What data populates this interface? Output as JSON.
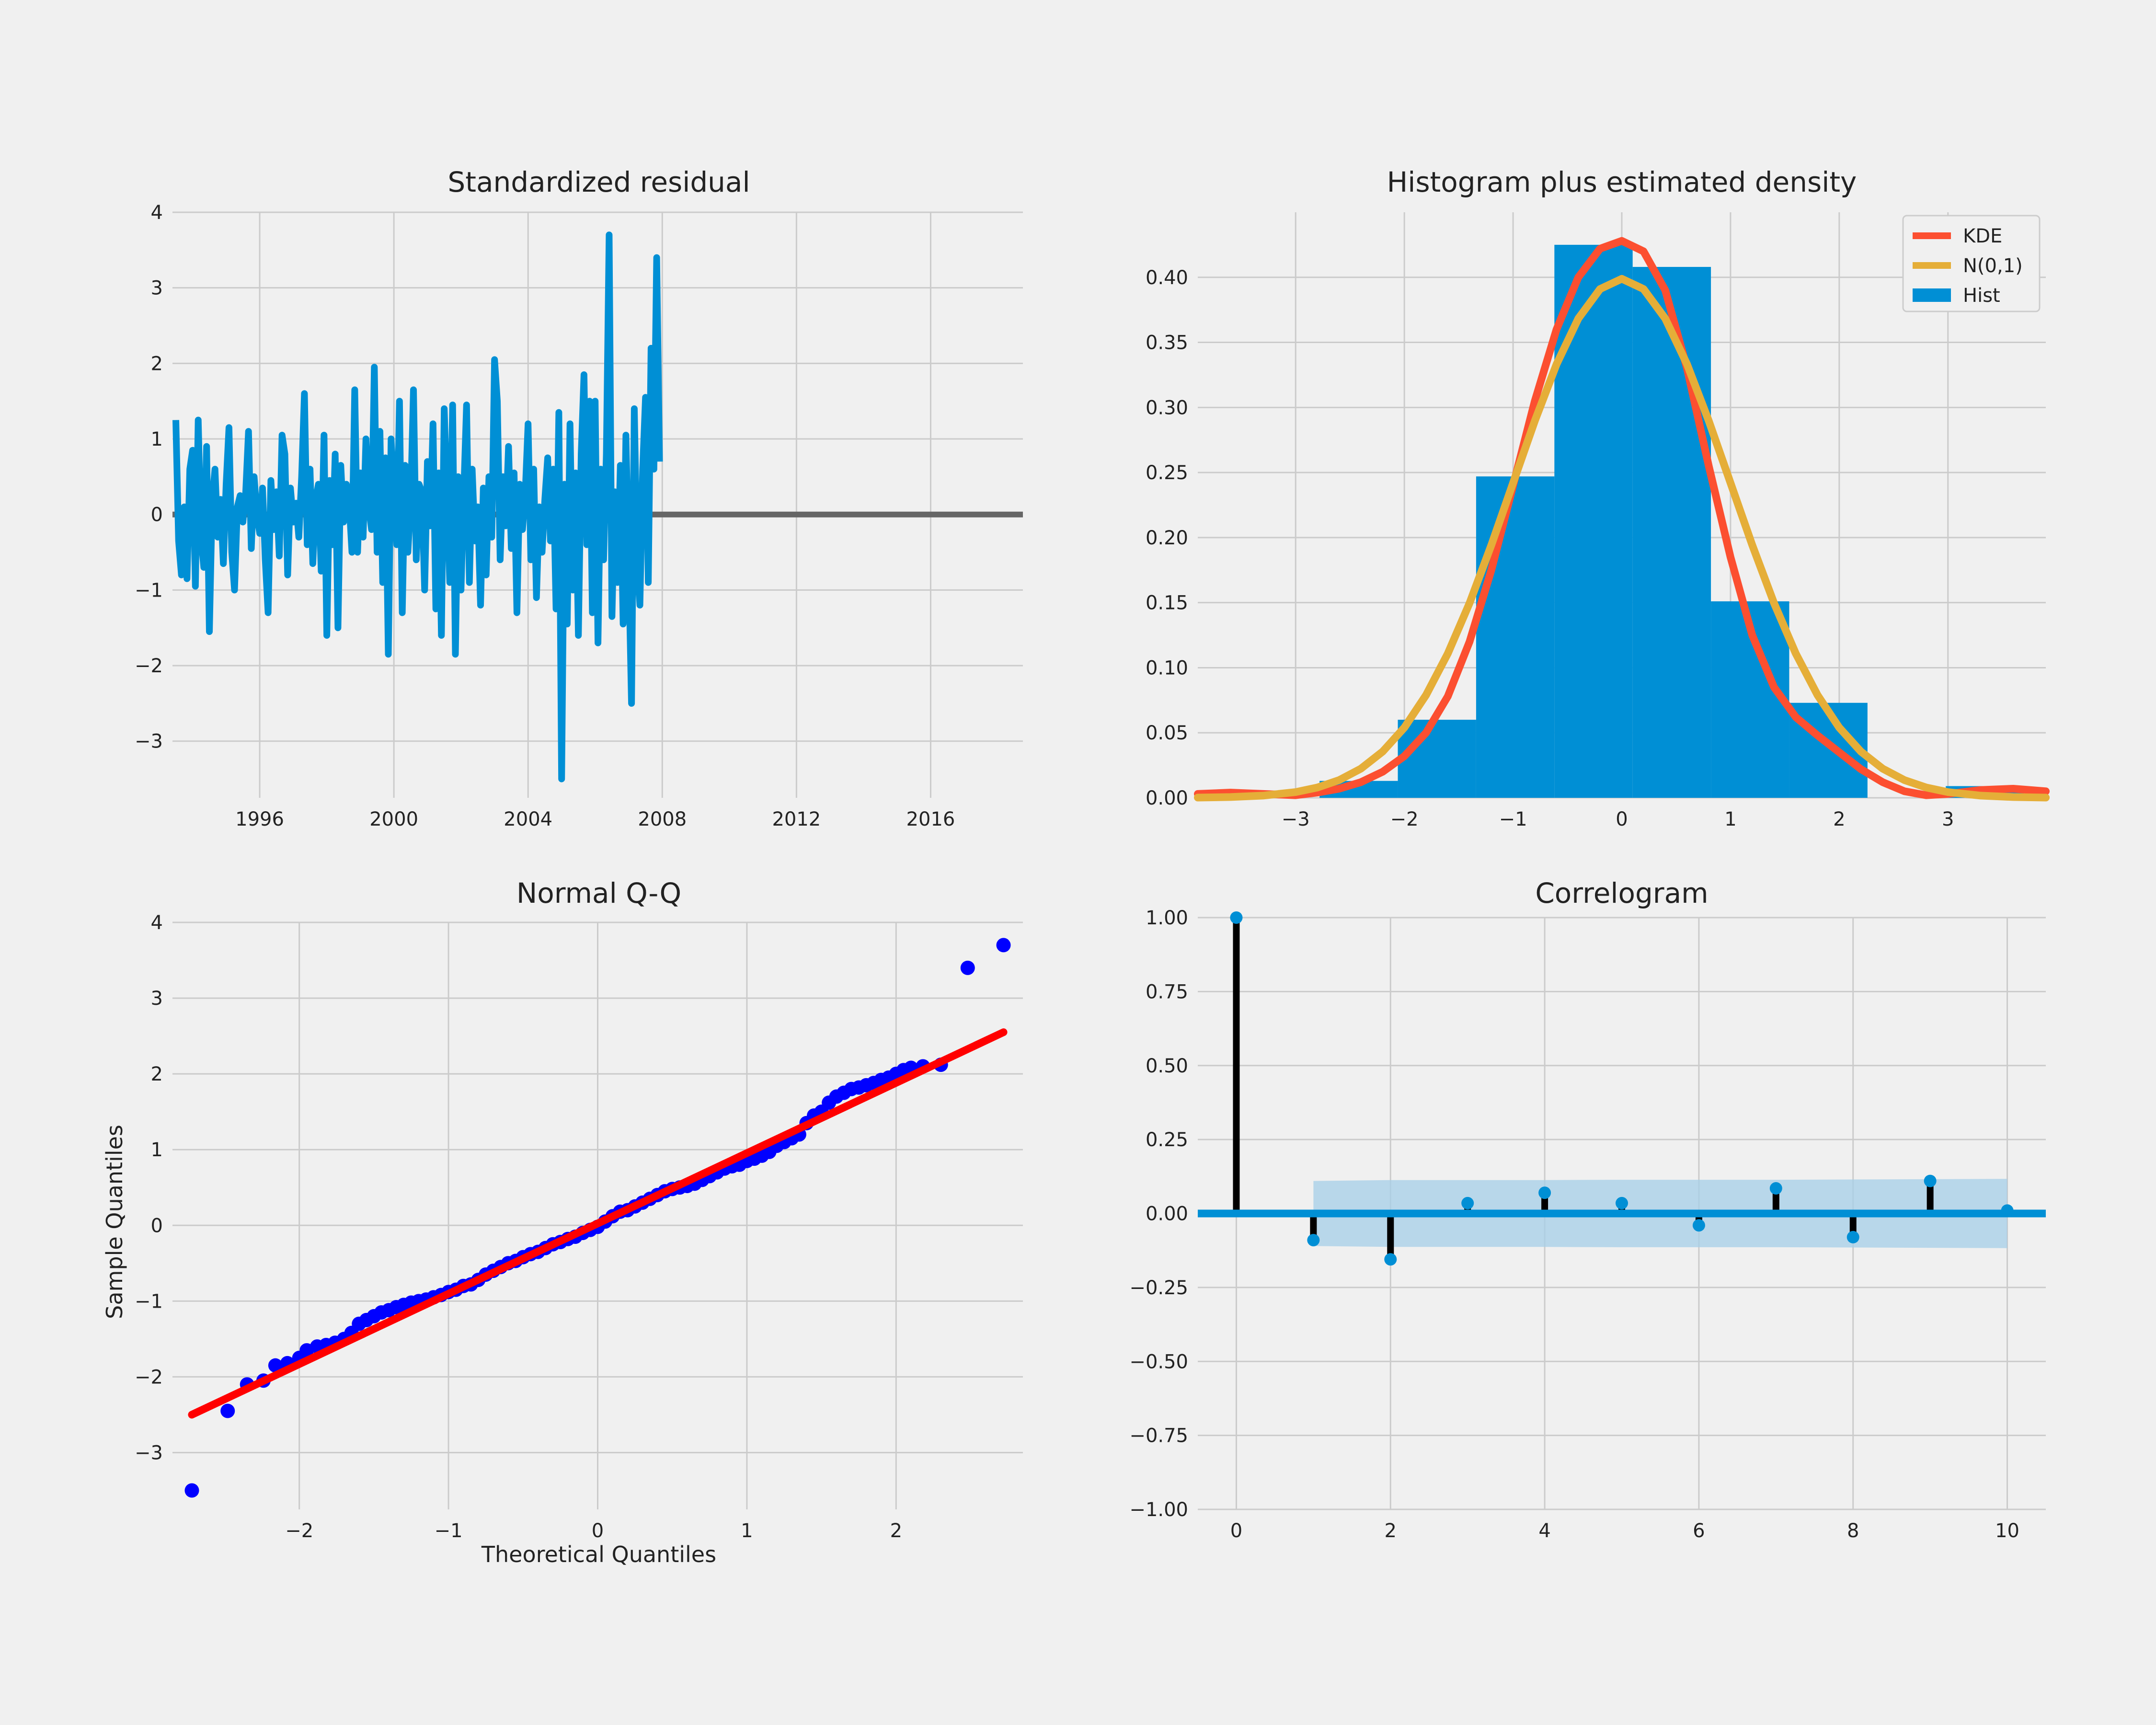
{
  "colors": {
    "background": "#f0f0f0",
    "grid": "#cbcbcb",
    "blue": "#008fd5",
    "red": "#fc4f30",
    "yellow": "#e5ae38",
    "qq_points": "#0000ff",
    "qq_line": "#ff0000",
    "stem": "#000000",
    "gray_zero": "#666666",
    "conf_band": "#a6cfe8"
  },
  "panels": {
    "residual": {
      "title": "Standardized residual"
    },
    "histogram": {
      "title": "Histogram plus estimated density"
    },
    "qq": {
      "title": "Normal Q-Q",
      "xlabel": "Theoretical Quantiles",
      "ylabel": "Sample Quantiles"
    },
    "correlogram": {
      "title": "Correlogram"
    }
  },
  "chart_data": [
    {
      "type": "line",
      "title": "Standardized residual",
      "xlabel": "",
      "ylabel": "",
      "xlim": [
        1993.4,
        2018.75
      ],
      "ylim": [
        -3.75,
        4.0
      ],
      "xticks": [
        1996,
        2000,
        2004,
        2008,
        2012,
        2016
      ],
      "xtick_labels": [
        "1996",
        "2000",
        "2004",
        "2008",
        "2012",
        "2016"
      ],
      "yticks": [
        -3,
        -2,
        -1,
        0,
        1,
        2,
        3,
        4
      ],
      "ytick_labels": [
        "−3",
        "−2",
        "−1",
        "0",
        "1",
        "2",
        "3",
        "4"
      ],
      "grid": true,
      "reference_line": 0,
      "series": [
        {
          "x_start": 1993.5,
          "x_step": 0.0833333,
          "values": [
            1.25,
            -0.35,
            -0.8,
            0.1,
            -0.85,
            0.6,
            0.85,
            -0.95,
            1.25,
            -0.3,
            -0.7,
            0.9,
            -1.55,
            0.2,
            0.6,
            -0.3,
            0.2,
            -0.65,
            0.4,
            1.15,
            -0.5,
            -1.0,
            0.1,
            0.25,
            -0.1,
            0.3,
            1.1,
            -0.45,
            0.5,
            0.0,
            -0.25,
            0.35,
            -0.6,
            -1.3,
            0.45,
            -0.2,
            0.3,
            -0.55,
            1.05,
            0.8,
            -0.8,
            0.35,
            -0.1,
            0.15,
            -0.3,
            0.5,
            1.6,
            -0.4,
            0.6,
            -0.65,
            0.2,
            0.4,
            -0.75,
            1.05,
            -1.6,
            0.45,
            -0.4,
            0.8,
            -1.5,
            0.65,
            -0.1,
            0.4,
            0.15,
            -0.5,
            1.65,
            -0.5,
            0.55,
            -0.3,
            1.0,
            0.1,
            -0.2,
            1.95,
            -0.5,
            1.1,
            -0.9,
            0.75,
            -1.85,
            1.0,
            0.3,
            -0.4,
            1.5,
            -1.3,
            0.65,
            -0.5,
            0.15,
            1.65,
            -0.6,
            0.4,
            0.3,
            -1.0,
            0.7,
            -0.15,
            1.2,
            -1.25,
            0.55,
            -1.6,
            1.4,
            0.2,
            -0.9,
            1.45,
            -1.85,
            0.5,
            -1.0,
            0.3,
            1.45,
            -0.9,
            0.6,
            -0.35,
            0.1,
            -1.2,
            0.35,
            -0.8,
            0.5,
            -0.3,
            2.05,
            1.5,
            -0.6,
            0.5,
            -0.15,
            0.9,
            -0.45,
            0.55,
            -1.3,
            0.4,
            -0.2,
            0.3,
            1.2,
            -0.6,
            0.6,
            -1.1,
            0.1,
            -0.5,
            0.2,
            0.75,
            -0.35,
            0.6,
            -1.25,
            1.35,
            -3.5,
            0.4,
            -1.45,
            1.2,
            -1.0,
            0.55,
            -1.6,
            0.8,
            1.85,
            -0.4,
            1.5,
            -1.3,
            1.5,
            -1.7,
            0.6,
            -0.6,
            0.8,
            3.7,
            -1.35,
            0.3,
            -0.9,
            0.65,
            -1.45,
            1.05,
            -0.7,
            -2.5,
            1.4,
            -0.6,
            -1.2,
            0.6,
            1.55,
            -0.9,
            2.2,
            0.6,
            3.4,
            0.7
          ]
        }
      ]
    },
    {
      "type": "bar",
      "title": "Histogram plus estimated density",
      "xlabel": "",
      "ylabel": "",
      "xlim": [
        -3.9,
        3.9
      ],
      "ylim": [
        0.0,
        0.45
      ],
      "xticks": [
        -3,
        -2,
        -1,
        0,
        1,
        2,
        3
      ],
      "xtick_labels": [
        "−3",
        "−2",
        "−1",
        "0",
        "1",
        "2",
        "3"
      ],
      "yticks": [
        0.0,
        0.05,
        0.1,
        0.15,
        0.2,
        0.25,
        0.3,
        0.35,
        0.4
      ],
      "ytick_labels": [
        "0.00",
        "0.05",
        "0.10",
        "0.15",
        "0.20",
        "0.25",
        "0.30",
        "0.35",
        "0.40"
      ],
      "grid": true,
      "legend": [
        "KDE",
        "N(0,1)",
        "Hist"
      ],
      "legend_position": "top-right",
      "histogram": {
        "name": "Hist",
        "bin_edges": [
          -3.5,
          -2.78,
          -2.06,
          -1.34,
          -0.62,
          0.1,
          0.82,
          1.54,
          2.26,
          2.98,
          3.7
        ],
        "values": [
          0.0,
          0.013,
          0.06,
          0.247,
          0.425,
          0.408,
          0.151,
          0.073,
          0.0,
          0.009
        ]
      },
      "series": [
        {
          "name": "KDE",
          "x": [
            -3.9,
            -3.6,
            -3.3,
            -3.0,
            -2.8,
            -2.6,
            -2.4,
            -2.2,
            -2.0,
            -1.8,
            -1.6,
            -1.4,
            -1.2,
            -1.0,
            -0.8,
            -0.6,
            -0.4,
            -0.2,
            0.0,
            0.2,
            0.4,
            0.6,
            0.8,
            1.0,
            1.2,
            1.4,
            1.6,
            1.8,
            2.0,
            2.2,
            2.4,
            2.6,
            2.8,
            3.0,
            3.3,
            3.6,
            3.9
          ],
          "values": [
            0.003,
            0.004,
            0.003,
            0.002,
            0.004,
            0.007,
            0.012,
            0.02,
            0.032,
            0.05,
            0.078,
            0.12,
            0.175,
            0.24,
            0.305,
            0.36,
            0.4,
            0.422,
            0.428,
            0.42,
            0.39,
            0.33,
            0.255,
            0.185,
            0.125,
            0.085,
            0.062,
            0.048,
            0.035,
            0.022,
            0.012,
            0.005,
            0.002,
            0.003,
            0.006,
            0.007,
            0.005
          ]
        },
        {
          "name": "N(0,1)",
          "x": [
            -3.9,
            -3.6,
            -3.3,
            -3.0,
            -2.8,
            -2.6,
            -2.4,
            -2.2,
            -2.0,
            -1.8,
            -1.6,
            -1.4,
            -1.2,
            -1.0,
            -0.8,
            -0.6,
            -0.4,
            -0.2,
            0.0,
            0.2,
            0.4,
            0.6,
            0.8,
            1.0,
            1.2,
            1.4,
            1.6,
            1.8,
            2.0,
            2.2,
            2.4,
            2.6,
            2.8,
            3.0,
            3.3,
            3.6,
            3.9
          ],
          "values": [
            0.0002,
            0.0006,
            0.0017,
            0.0044,
            0.0079,
            0.0136,
            0.0224,
            0.0355,
            0.054,
            0.079,
            0.1109,
            0.1497,
            0.1942,
            0.242,
            0.2897,
            0.3332,
            0.3683,
            0.391,
            0.3989,
            0.391,
            0.3683,
            0.3332,
            0.2897,
            0.242,
            0.1942,
            0.1497,
            0.1109,
            0.079,
            0.054,
            0.0355,
            0.0224,
            0.0136,
            0.0079,
            0.0044,
            0.0017,
            0.0006,
            0.0002
          ]
        }
      ]
    },
    {
      "type": "scatter",
      "title": "Normal Q-Q",
      "xlabel": "Theoretical Quantiles",
      "ylabel": "Sample Quantiles",
      "xlim": [
        -2.85,
        2.85
      ],
      "ylim": [
        -3.75,
        4.0
      ],
      "xticks": [
        -2,
        -1,
        0,
        1,
        2
      ],
      "xtick_labels": [
        "−2",
        "−1",
        "0",
        "1",
        "2"
      ],
      "yticks": [
        -3,
        -2,
        -1,
        0,
        1,
        2,
        3,
        4
      ],
      "ytick_labels": [
        "−3",
        "−2",
        "−1",
        "0",
        "1",
        "2",
        "3",
        "4"
      ],
      "grid": true,
      "reference_line": {
        "x": [
          -2.72,
          2.72
        ],
        "y": [
          -2.5,
          2.55
        ]
      },
      "points": {
        "x": [
          -2.72,
          -2.48,
          -2.35,
          -2.24,
          -2.16,
          -2.08,
          -2.0,
          -1.95,
          -1.88,
          -1.82,
          -1.76,
          -1.7,
          -1.65,
          -1.6,
          -1.55,
          -1.5,
          -1.45,
          -1.4,
          -1.35,
          -1.3,
          -1.25,
          -1.2,
          -1.15,
          -1.1,
          -1.05,
          -1.0,
          -0.95,
          -0.9,
          -0.85,
          -0.8,
          -0.75,
          -0.7,
          -0.65,
          -0.6,
          -0.55,
          -0.5,
          -0.45,
          -0.4,
          -0.35,
          -0.3,
          -0.25,
          -0.2,
          -0.15,
          -0.1,
          -0.05,
          0.0,
          0.05,
          0.1,
          0.15,
          0.2,
          0.25,
          0.3,
          0.35,
          0.4,
          0.45,
          0.5,
          0.55,
          0.6,
          0.65,
          0.7,
          0.75,
          0.8,
          0.85,
          0.9,
          0.95,
          1.0,
          1.05,
          1.1,
          1.15,
          1.2,
          1.25,
          1.3,
          1.35,
          1.4,
          1.45,
          1.5,
          1.55,
          1.6,
          1.65,
          1.7,
          1.75,
          1.8,
          1.85,
          1.9,
          1.95,
          2.0,
          2.05,
          2.1,
          2.18,
          2.3,
          2.48,
          2.72
        ],
        "values": [
          -3.5,
          -2.45,
          -2.1,
          -2.05,
          -1.85,
          -1.82,
          -1.75,
          -1.65,
          -1.6,
          -1.58,
          -1.55,
          -1.5,
          -1.42,
          -1.3,
          -1.25,
          -1.2,
          -1.15,
          -1.12,
          -1.08,
          -1.05,
          -1.02,
          -1.0,
          -0.98,
          -0.95,
          -0.92,
          -0.88,
          -0.85,
          -0.8,
          -0.78,
          -0.72,
          -0.65,
          -0.6,
          -0.55,
          -0.5,
          -0.47,
          -0.42,
          -0.38,
          -0.35,
          -0.3,
          -0.25,
          -0.22,
          -0.18,
          -0.15,
          -0.1,
          -0.06,
          -0.02,
          0.05,
          0.12,
          0.18,
          0.2,
          0.25,
          0.3,
          0.35,
          0.4,
          0.45,
          0.48,
          0.5,
          0.52,
          0.55,
          0.6,
          0.65,
          0.7,
          0.75,
          0.78,
          0.8,
          0.85,
          0.88,
          0.92,
          0.97,
          1.05,
          1.1,
          1.15,
          1.2,
          1.35,
          1.45,
          1.5,
          1.62,
          1.7,
          1.75,
          1.8,
          1.82,
          1.85,
          1.88,
          1.92,
          1.95,
          2.0,
          2.05,
          2.08,
          2.1,
          2.12,
          3.4,
          3.7
        ]
      }
    },
    {
      "type": "bar",
      "title": "Correlogram",
      "xlabel": "",
      "ylabel": "",
      "xlim": [
        -0.5,
        10.5
      ],
      "ylim": [
        -1.0,
        1.0
      ],
      "xticks": [
        0,
        2,
        4,
        6,
        8,
        10
      ],
      "xtick_labels": [
        "0",
        "2",
        "4",
        "6",
        "8",
        "10"
      ],
      "yticks": [
        -1.0,
        -0.75,
        -0.5,
        -0.25,
        0.0,
        0.25,
        0.5,
        0.75,
        1.0
      ],
      "ytick_labels": [
        "−1.00",
        "−0.75",
        "−0.50",
        "−0.25",
        "0.00",
        "0.25",
        "0.50",
        "0.75",
        "1.00"
      ],
      "grid": true,
      "lags": [
        0,
        1,
        2,
        3,
        4,
        5,
        6,
        7,
        8,
        9,
        10
      ],
      "values": [
        1.0,
        -0.09,
        -0.155,
        0.035,
        0.07,
        0.035,
        -0.04,
        0.085,
        -0.08,
        0.11,
        0.01
      ],
      "confidence_band": {
        "x": [
          1,
          2,
          3,
          4,
          5,
          6,
          7,
          8,
          9,
          10
        ],
        "upper": [
          0.11,
          0.113,
          0.113,
          0.113,
          0.114,
          0.114,
          0.114,
          0.115,
          0.116,
          0.117
        ],
        "lower": [
          -0.11,
          -0.113,
          -0.113,
          -0.113,
          -0.114,
          -0.114,
          -0.114,
          -0.115,
          -0.116,
          -0.117
        ]
      }
    }
  ]
}
